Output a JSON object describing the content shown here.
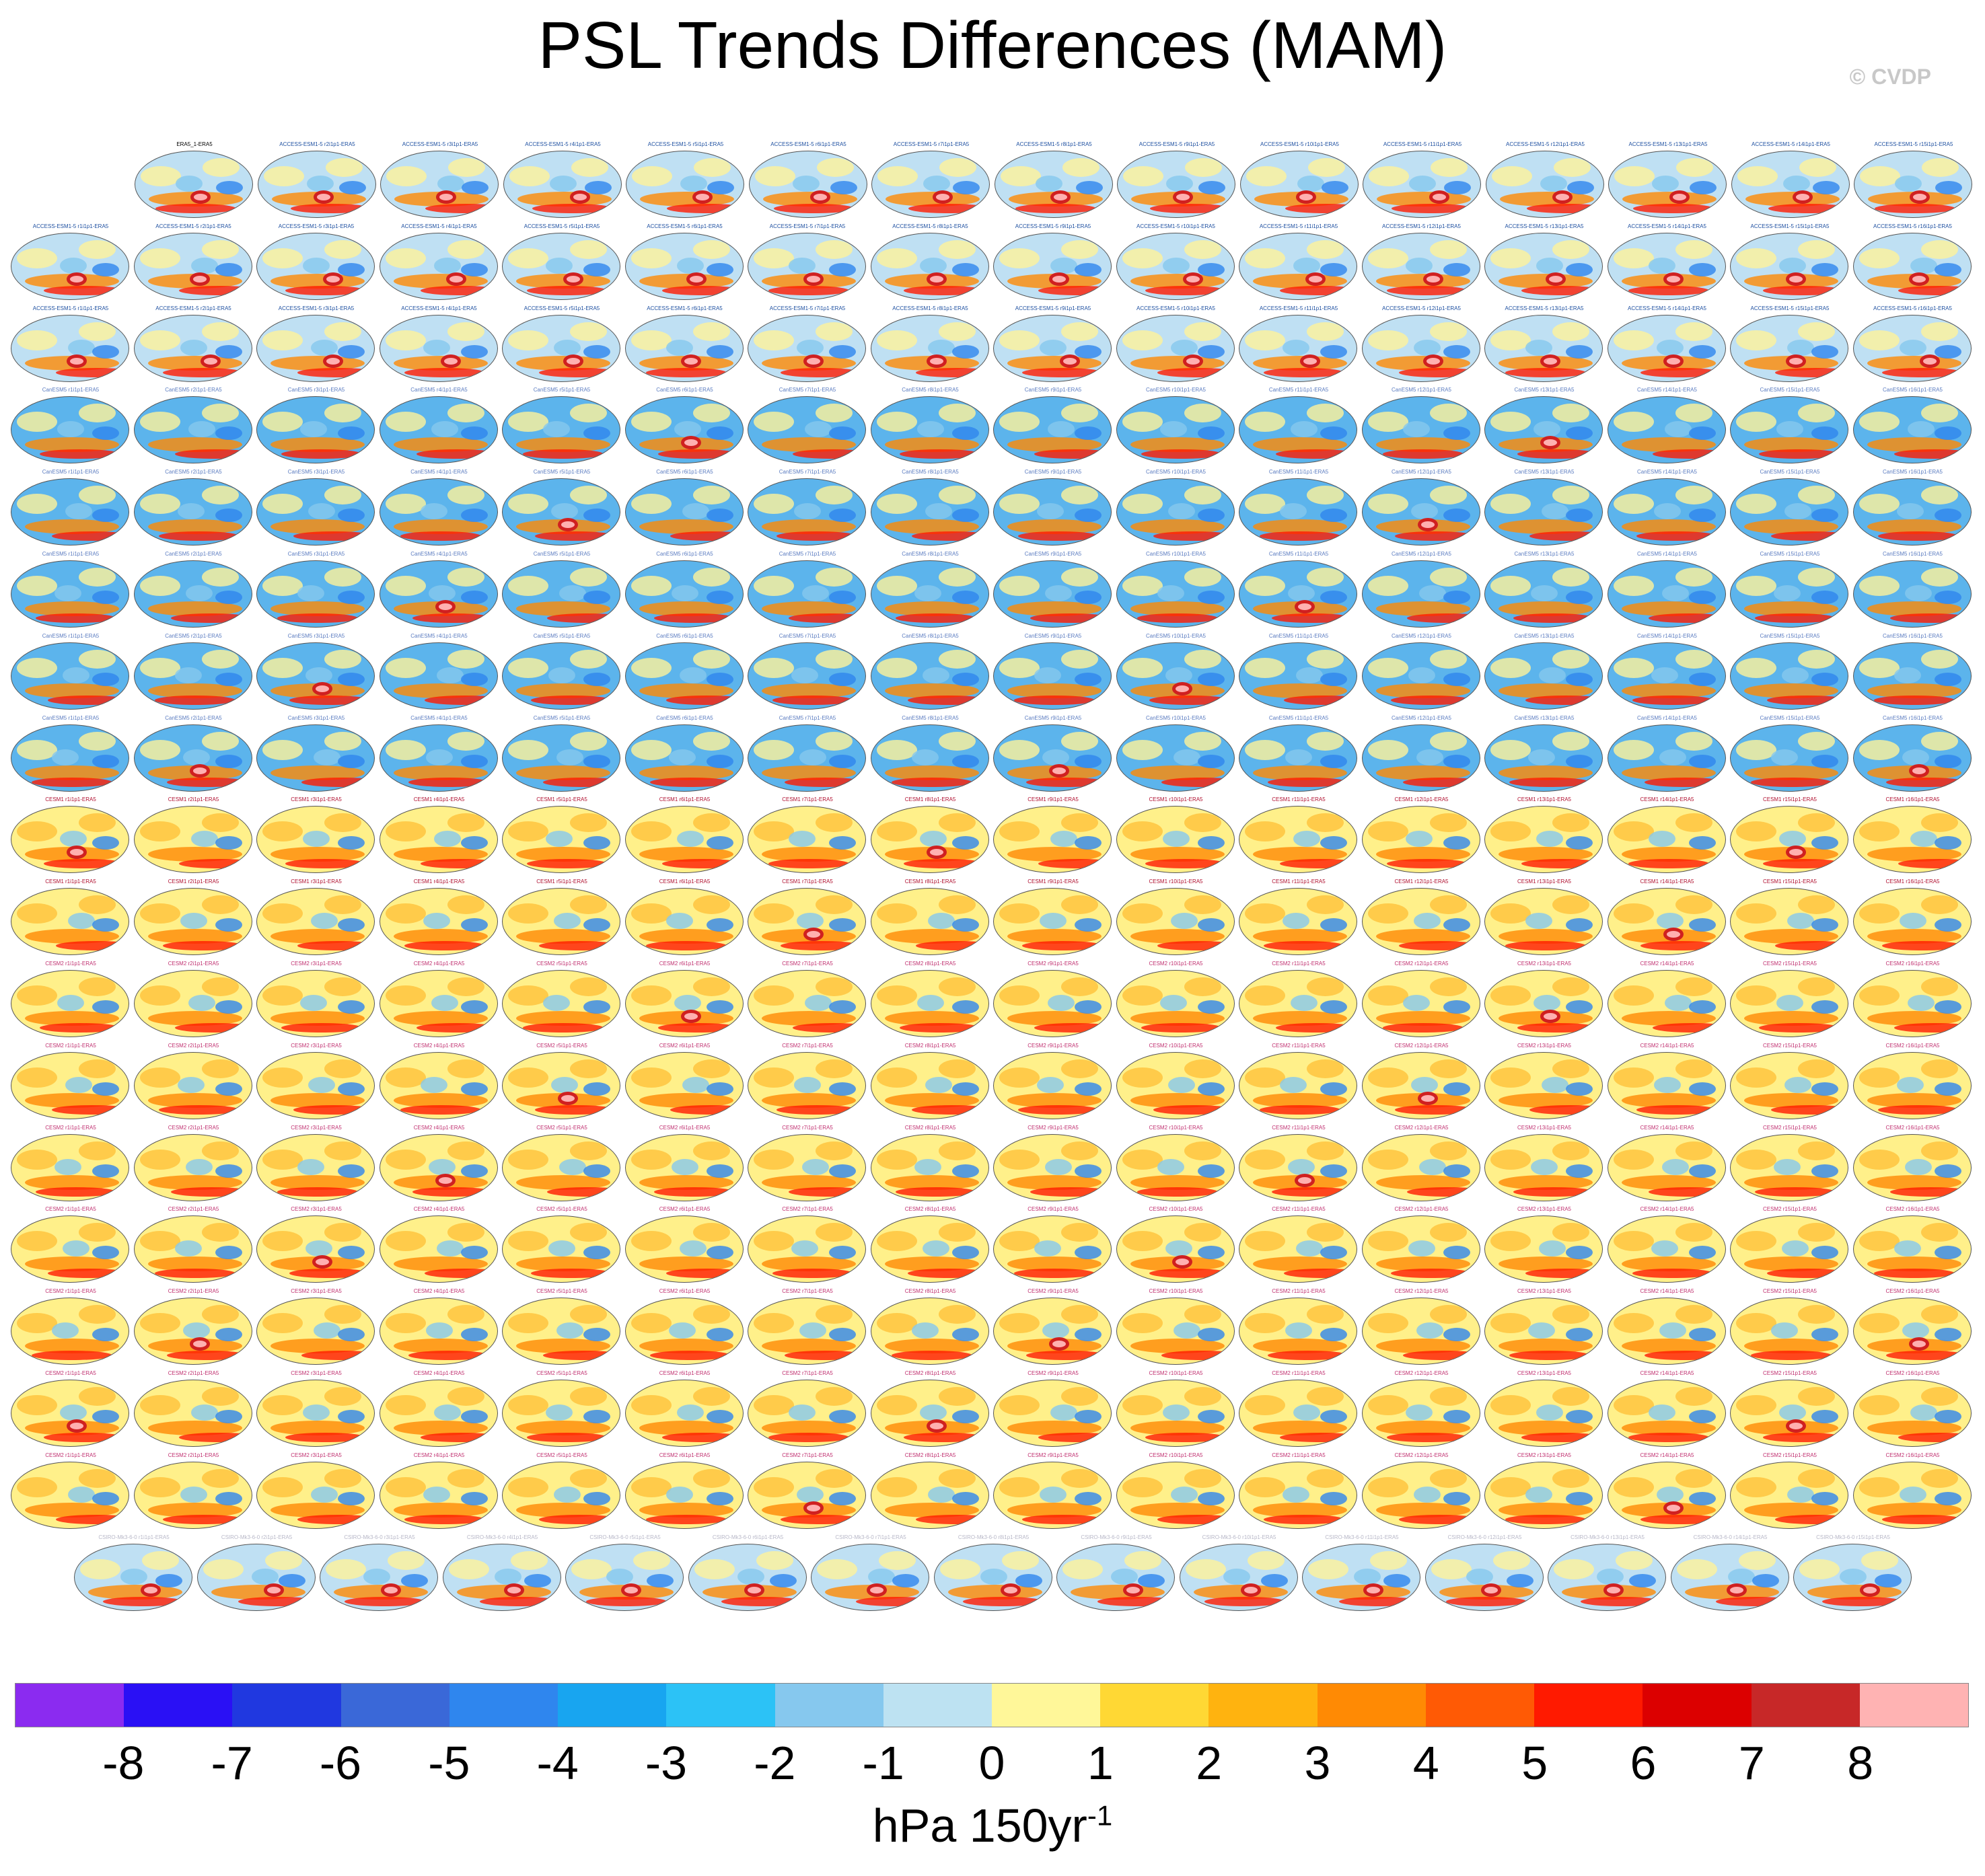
{
  "title": "PSL Trends Differences (MAM)",
  "credit": "© CVDP",
  "chart_data": {
    "type": "heatmap",
    "title": "PSL Trends Differences (MAM)",
    "description_panels": "Grid of global map panels (model ensemble member minus ERA5 trend difference)",
    "panel_titles": [
      "ERA5_1-ERA5",
      "ACCESS-ESM1-5 r1i1p1f1-ERA5",
      "ACCESS-ESM1-5 r2i1p1f1-ERA5",
      "ACCESS-ESM1-5 r3i1p1f1-ERA5",
      "ACCESS-ESM1-5 r4i1p1f1-ERA5",
      "ACCESS-ESM1-5 r5i1p1f1-ERA5",
      "ACCESS-ESM1-5 r6i1p1f1-ERA5",
      "ACCESS-ESM1-5 r7i1p1f1-ERA5",
      "ACCESS-ESM1-5 r8i1p1f1-ERA5",
      "ACCESS-ESM1-5 r9i1p1f1-ERA5",
      "ACCESS-ESM1-5 r10i1p1f1-ERA5",
      "ACCESS-ESM1-5 r11i1p1f1-ERA5",
      "ACCESS-ESM1-5 r12i1p1f1-ERA5",
      "ACCESS-ESM1-5 r13i1p1f1-ERA5",
      "ACCESS-ESM1-5 r14i1p1f1-ERA5",
      "ACCESS-ESM1-5 r15i1p1f1-ERA5",
      "CanESM5 r1i1p1-ERA5",
      "CanESM5 r2i1p1-ERA5",
      "CanESM5 r3i1p1-ERA5",
      "CESM1 r1i1p1-ERA5",
      "CESM1 r2i1p1-ERA5",
      "CESM1 r3i1p1-ERA5",
      "CESM2 r1i1p1-ERA5",
      "CESM2 r2i1p1-ERA5",
      "CESM2 r3i1p1-ERA5",
      "CSIRO-Mk3-6-0 r1i1p1-ERA5",
      "CSIRO-Mk3-6-0 r2i1p1-ERA5",
      "CSIRO-Mk3-6-0 r3i1p1-ERA5"
    ],
    "rows_x_panels": [
      15,
      16,
      16,
      16,
      16,
      16,
      16,
      16,
      16,
      16,
      16,
      16,
      16,
      16,
      16,
      16,
      16,
      15
    ],
    "row_model_groups": [
      "ACCESS-ESM1-5",
      "ACCESS-ESM1-5",
      "ACCESS-ESM1-5",
      "CanESM5",
      "CanESM5",
      "CanESM5",
      "CanESM5",
      "CanESM5",
      "CESM1",
      "CESM1",
      "CESM2",
      "CESM2",
      "CESM2",
      "CESM2",
      "CESM2",
      "CESM2",
      "CESM2",
      "CSIRO-Mk3-6-0"
    ],
    "colorbar_levels": [
      -8,
      -7,
      -6,
      -5,
      -4,
      -3,
      -2,
      -1,
      0,
      1,
      2,
      3,
      4,
      5,
      6,
      7,
      8
    ],
    "colorbar_colors": [
      "#8b2bf0",
      "#2a10f5",
      "#2038e0",
      "#3a68d8",
      "#2f86ee",
      "#18a5f0",
      "#2cc2f6",
      "#86c8ee",
      "#bde2f2",
      "#fff799",
      "#ffd834",
      "#ffb30f",
      "#ff8a04",
      "#ff5a05",
      "#ff1a00",
      "#dc0000",
      "#c72828",
      "#ffb3b3"
    ],
    "units": "hPa 150yr",
    "units_exponent": "-1"
  },
  "colorbar": {
    "ticks": [
      "-8",
      "-7",
      "-6",
      "-5",
      "-4",
      "-3",
      "-2",
      "-1",
      "0",
      "1",
      "2",
      "3",
      "4",
      "5",
      "6",
      "7",
      "8"
    ]
  }
}
